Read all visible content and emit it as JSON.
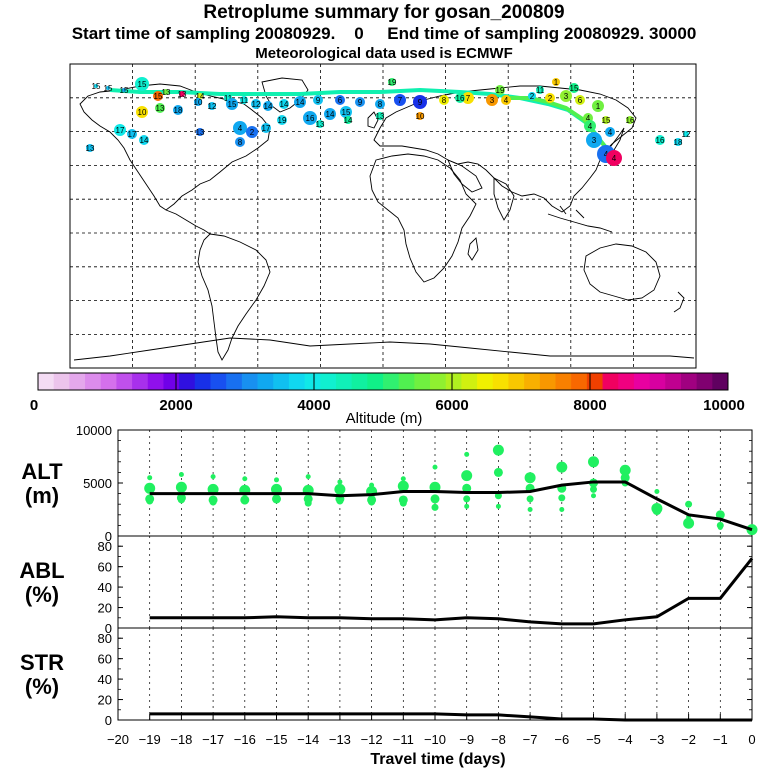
{
  "title": "Retroplume summary for gosan_200809",
  "subtitle": "Start time of sampling 20080929.    0     End time of sampling 20080929. 30000",
  "met_note": "Meteorological data used is ECMWF",
  "colorbar": {
    "label": "Altitude (m)",
    "ticks": [
      "0",
      "2000",
      "4000",
      "6000",
      "8000",
      "10000"
    ],
    "range": [
      0,
      10000
    ],
    "colors": [
      "#f4dcf4",
      "#ecc4ec",
      "#e4a8ec",
      "#dc8cec",
      "#d470ec",
      "#c050ec",
      "#a830ec",
      "#9010ec",
      "#7000e8",
      "#3010e0",
      "#1830e8",
      "#1850f0",
      "#1870f0",
      "#1890f0",
      "#10a8f0",
      "#10c0f0",
      "#10d8f0",
      "#10e8e8",
      "#10f0d0",
      "#10f0b8",
      "#10f0a0",
      "#10f088",
      "#30f070",
      "#50f050",
      "#70f040",
      "#90f030",
      "#b0f020",
      "#d0f010",
      "#f0f000",
      "#f8e000",
      "#f8c800",
      "#f8b000",
      "#f89800",
      "#f88000",
      "#f86800",
      "#f04000",
      "#f00060",
      "#f00080",
      "#e800a0",
      "#d800a0",
      "#c00090",
      "#a00080",
      "#800070",
      "#600060"
    ]
  },
  "map": {
    "point_labels": [
      "15",
      "19",
      "15",
      "15",
      "15",
      "13",
      "13",
      "14",
      "11",
      "11",
      "12",
      "10",
      "13",
      "18",
      "10",
      "12",
      "15",
      "14",
      "14",
      "14",
      "9",
      "6",
      "9",
      "8",
      "7",
      "9",
      "8",
      "7",
      "3",
      "4",
      "2",
      "2",
      "3",
      "6",
      "1",
      "17",
      "17",
      "14",
      "4",
      "2",
      "17",
      "19",
      "16",
      "14",
      "15",
      "3",
      "4",
      "4",
      "4",
      "15",
      "16",
      "13",
      "16",
      "18",
      "12",
      "4",
      "15",
      "1",
      "11",
      "19",
      "16",
      "10",
      "13",
      "14",
      "13",
      "8",
      "13",
      "15",
      "4"
    ]
  },
  "chart_data": [
    {
      "type": "line",
      "panel": "ALT",
      "ylabel": "ALT\n(m)",
      "ylabel_lines": [
        "ALT",
        "(m)"
      ],
      "ylim": [
        0,
        10000
      ],
      "yticks": [
        "0",
        "5000",
        "10000"
      ],
      "x": [
        -19,
        -18,
        -17,
        -16,
        -15,
        -14,
        -13,
        -12,
        -11,
        -10,
        -9,
        -8,
        -7,
        -6,
        -5,
        -4,
        -3,
        -2,
        -1,
        0
      ],
      "series": [
        {
          "name": "mean altitude",
          "values": [
            4000,
            4000,
            4000,
            4000,
            4000,
            4000,
            3800,
            3900,
            4200,
            4200,
            4100,
            4100,
            4200,
            4800,
            5100,
            5100,
            3500,
            2000,
            1600,
            600
          ]
        }
      ],
      "scatter": [
        [
          -19,
          5500
        ],
        [
          -19,
          4500
        ],
        [
          -19,
          3500
        ],
        [
          -19,
          3300
        ],
        [
          -18,
          5800
        ],
        [
          -18,
          4600
        ],
        [
          -18,
          3600
        ],
        [
          -18,
          3400
        ],
        [
          -17,
          5600
        ],
        [
          -17,
          4400
        ],
        [
          -17,
          3400
        ],
        [
          -17,
          3200
        ],
        [
          -16,
          5400
        ],
        [
          -16,
          4300
        ],
        [
          -16,
          3400
        ],
        [
          -16,
          3300
        ],
        [
          -15,
          5300
        ],
        [
          -15,
          4400
        ],
        [
          -15,
          3500
        ],
        [
          -15,
          3400
        ],
        [
          -14,
          5600
        ],
        [
          -14,
          4300
        ],
        [
          -14,
          3500
        ],
        [
          -14,
          3100
        ],
        [
          -13,
          5100
        ],
        [
          -13,
          4400
        ],
        [
          -13,
          3500
        ],
        [
          -13,
          3300
        ],
        [
          -12,
          4800
        ],
        [
          -12,
          4200
        ],
        [
          -12,
          3400
        ],
        [
          -12,
          3200
        ],
        [
          -11,
          5400
        ],
        [
          -11,
          4700
        ],
        [
          -11,
          3400
        ],
        [
          -11,
          3100
        ],
        [
          -10,
          6500
        ],
        [
          -10,
          4600
        ],
        [
          -10,
          3500
        ],
        [
          -10,
          2700
        ],
        [
          -9,
          7700
        ],
        [
          -9,
          5700
        ],
        [
          -9,
          4500
        ],
        [
          -9,
          3500
        ],
        [
          -9,
          2800
        ],
        [
          -8,
          8100
        ],
        [
          -8,
          6000
        ],
        [
          -8,
          3800
        ],
        [
          -8,
          2800
        ],
        [
          -7,
          5500
        ],
        [
          -7,
          4500
        ],
        [
          -7,
          3500
        ],
        [
          -7,
          2500
        ],
        [
          -6,
          6500
        ],
        [
          -6,
          4500
        ],
        [
          -6,
          3600
        ],
        [
          -6,
          2500
        ],
        [
          -5,
          7000
        ],
        [
          -5,
          5000
        ],
        [
          -5,
          4400
        ],
        [
          -5,
          3800
        ],
        [
          -4,
          6200
        ],
        [
          -4,
          5500
        ],
        [
          -4,
          5000
        ],
        [
          -3,
          4200
        ],
        [
          -3,
          2600
        ],
        [
          -3,
          2400
        ],
        [
          -2,
          3000
        ],
        [
          -2,
          1800
        ],
        [
          -2,
          1200
        ],
        [
          -1,
          2000
        ],
        [
          -1,
          1000
        ],
        [
          -1,
          800
        ],
        [
          0,
          600
        ]
      ],
      "marker_color": "#20f060"
    },
    {
      "type": "line",
      "panel": "ABL",
      "ylabel_lines": [
        "ABL",
        "(%)"
      ],
      "ylim": [
        0,
        90
      ],
      "yticks": [
        "0",
        "20",
        "40",
        "60",
        "80"
      ],
      "x": [
        -19,
        -18,
        -17,
        -16,
        -15,
        -14,
        -13,
        -12,
        -11,
        -10,
        -9,
        -8,
        -7,
        -6,
        -5,
        -4,
        -3,
        -2,
        -1,
        0
      ],
      "series": [
        {
          "name": "ABL fraction",
          "values": [
            10,
            10,
            10,
            10,
            11,
            10,
            10,
            9,
            9,
            8,
            10,
            9,
            6,
            4,
            4,
            8,
            11,
            29,
            29,
            68
          ]
        }
      ]
    },
    {
      "type": "line",
      "panel": "STR",
      "ylabel_lines": [
        "STR",
        "(%)"
      ],
      "ylim": [
        0,
        90
      ],
      "yticks": [
        "0",
        "20",
        "40",
        "60",
        "80"
      ],
      "x": [
        -19,
        -18,
        -17,
        -16,
        -15,
        -14,
        -13,
        -12,
        -11,
        -10,
        -9,
        -8,
        -7,
        -6,
        -5,
        -4,
        -3,
        -2,
        -1,
        0
      ],
      "series": [
        {
          "name": "stratospheric fraction",
          "values": [
            6,
            6,
            6,
            6,
            6,
            6,
            6,
            6,
            6,
            6,
            5,
            5,
            3,
            1,
            1,
            0,
            0,
            0,
            0,
            0
          ]
        }
      ]
    }
  ],
  "xaxis": {
    "label": "Travel time (days)",
    "ticks": [
      "−20",
      "−19",
      "−18",
      "−17",
      "−16",
      "−15",
      "−14",
      "−13",
      "−12",
      "−11",
      "−10",
      "−9",
      "−8",
      "−7",
      "−6",
      "−5",
      "−4",
      "−3",
      "−2",
      "−1",
      "0"
    ]
  }
}
